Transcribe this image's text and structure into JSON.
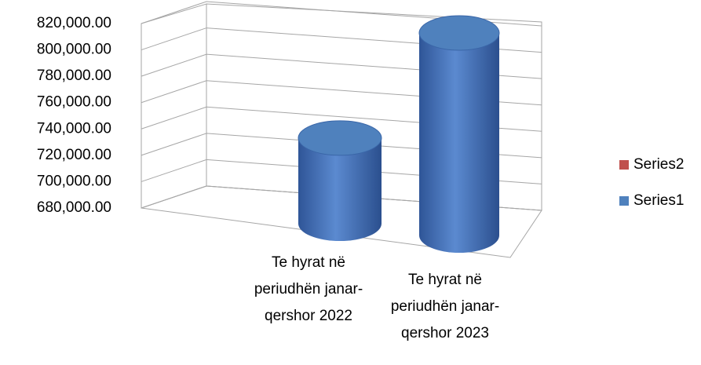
{
  "chart_data": {
    "type": "cylinder3d",
    "categories": [
      "Te hyrat në periudhën janar-qershor 2022",
      "Te hyrat në periudhën janar-qershor 2023"
    ],
    "series": [
      {
        "name": "Series1",
        "color": "#4f81bd",
        "values": [
          735000,
          810000
        ]
      },
      {
        "name": "Series2",
        "color": "#c0504d",
        "values": [
          null,
          null
        ]
      }
    ],
    "ylim": [
      680000,
      820000
    ],
    "yticks": [
      {
        "value": 680000,
        "label": "680,000.00"
      },
      {
        "value": 700000,
        "label": "700,000.00"
      },
      {
        "value": 720000,
        "label": "720,000.00"
      },
      {
        "value": 740000,
        "label": "740,000.00"
      },
      {
        "value": 760000,
        "label": "760,000.00"
      },
      {
        "value": 780000,
        "label": "780,000.00"
      },
      {
        "value": 800000,
        "label": "800,000.00"
      },
      {
        "value": 820000,
        "label": "820,000.00"
      }
    ],
    "grid": true,
    "legend": "right"
  }
}
